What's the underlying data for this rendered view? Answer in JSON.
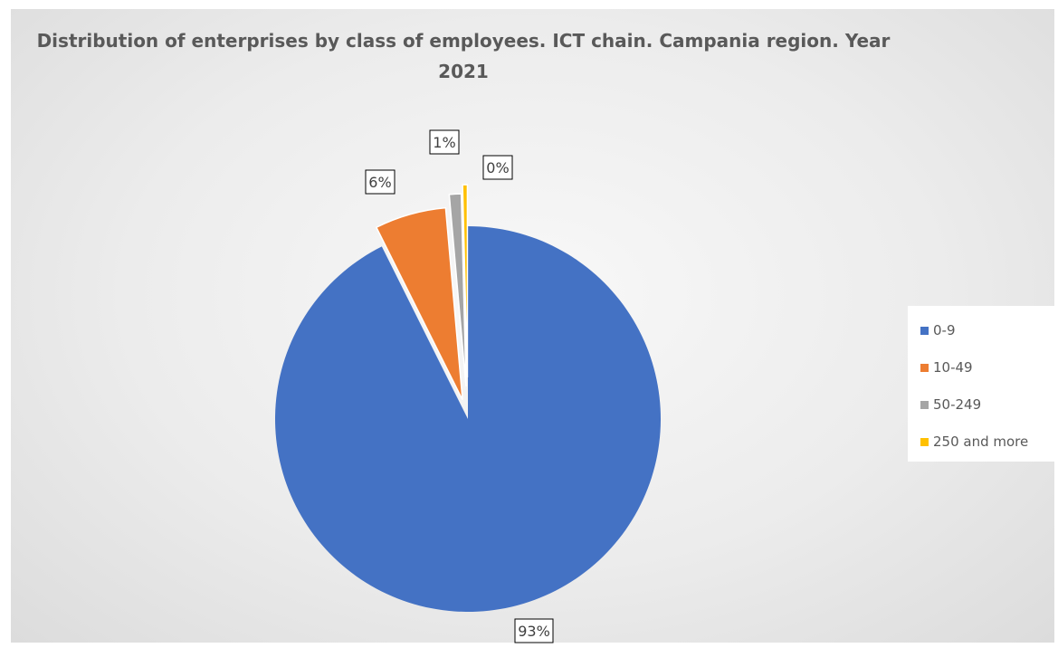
{
  "chart_data": {
    "type": "pie",
    "title": "Distribution of enterprises by class of employees. ICT chain. Campania region. Year 2021",
    "categories": [
      "0-9",
      "10-49",
      "50-249",
      "250 and more"
    ],
    "values": [
      93,
      6,
      1,
      0
    ],
    "labels": [
      "93%",
      "6%",
      "1%",
      "0%"
    ],
    "colors": [
      "#4472c4",
      "#ed7d31",
      "#a5a5a5",
      "#ffc000"
    ],
    "legend_position": "right",
    "exploded": true
  }
}
